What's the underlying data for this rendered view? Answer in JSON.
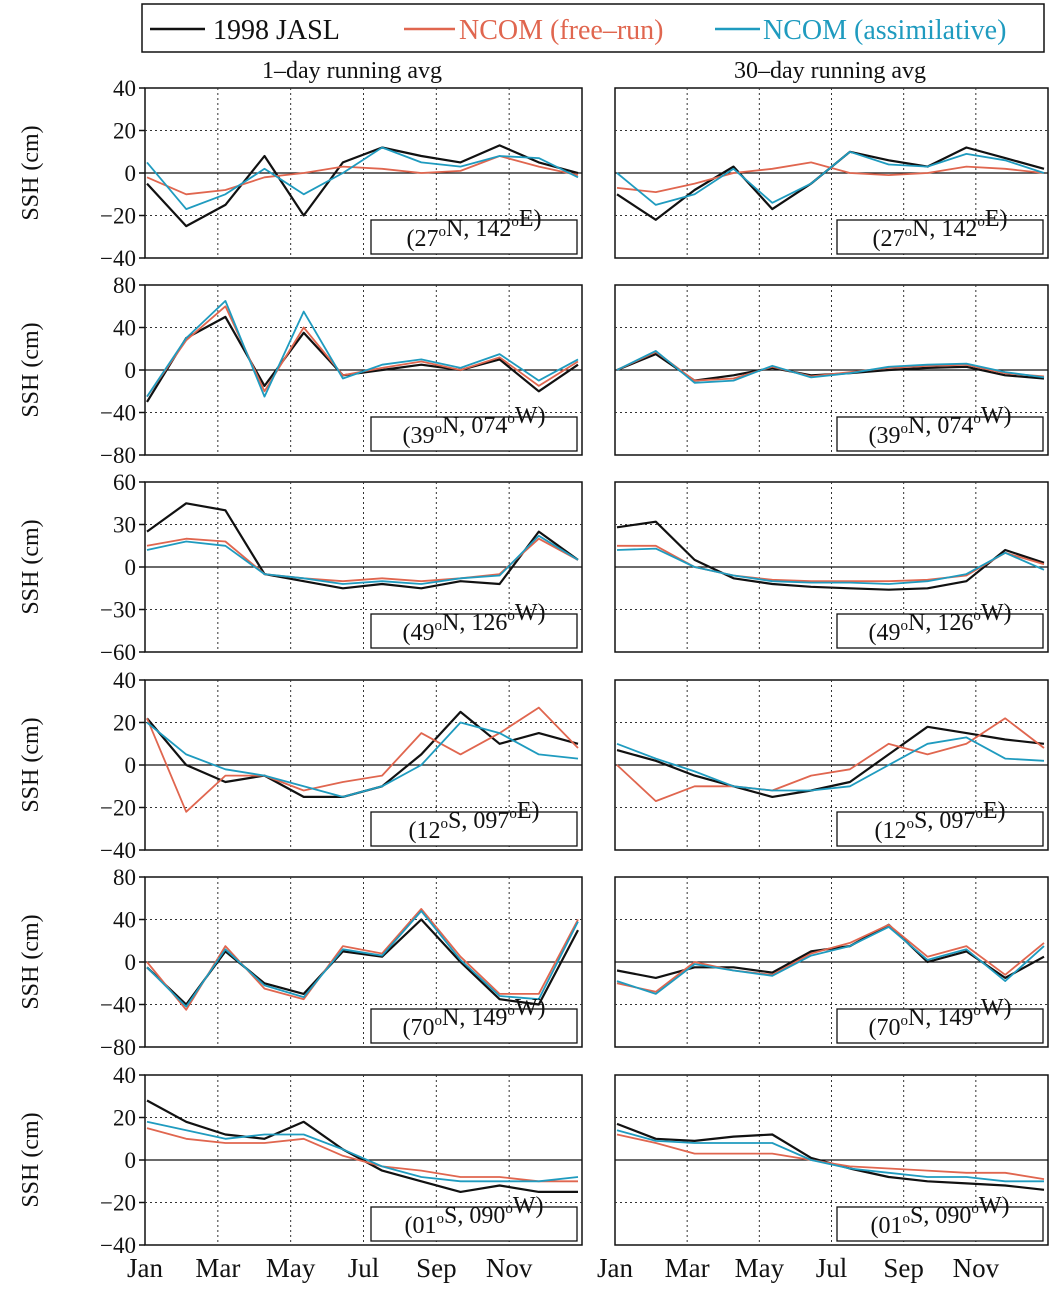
{
  "legend": {
    "entries": [
      {
        "label": "1998 JASL",
        "color": "#111111"
      },
      {
        "label": "NCOM (free–run)",
        "color": "#e0664f"
      },
      {
        "label": "NCOM (assimilative)",
        "color": "#1f9bbf"
      }
    ]
  },
  "column_titles": [
    "1–day running avg",
    "30–day running avg"
  ],
  "x_tick_labels": [
    "Jan",
    "Mar",
    "May",
    "Jul",
    "Sep",
    "Nov"
  ],
  "y_axis_label": "SSH (cm)",
  "chart_data": [
    {
      "type": "line",
      "smoothing": "1-day",
      "location": "(27°N, 142°E)",
      "ylabel": "SSH (cm)",
      "ylim": [
        -40,
        40
      ],
      "yticks": [
        -40,
        -20,
        0,
        20,
        40
      ],
      "xticks": [
        "Jan",
        "Mar",
        "May",
        "Jul",
        "Sep",
        "Nov"
      ],
      "grid": true,
      "x": [
        "Jan",
        "Feb",
        "Mar",
        "Apr",
        "May",
        "Jun",
        "Jul",
        "Aug",
        "Sep",
        "Oct",
        "Nov",
        "Dec"
      ],
      "series": [
        {
          "name": "1998 JASL",
          "values": [
            -5,
            -25,
            -15,
            8,
            -20,
            5,
            12,
            8,
            5,
            13,
            5,
            0
          ]
        },
        {
          "name": "NCOM (free–run)",
          "values": [
            -2,
            -10,
            -8,
            -2,
            0,
            3,
            2,
            0,
            1,
            8,
            3,
            -1
          ]
        },
        {
          "name": "NCOM (assimilative)",
          "values": [
            5,
            -17,
            -10,
            2,
            -10,
            0,
            12,
            5,
            3,
            8,
            7,
            -2
          ]
        }
      ]
    },
    {
      "type": "line",
      "smoothing": "30-day",
      "location": "(27°N, 142°E)",
      "ylabel": "SSH (cm)",
      "ylim": [
        -40,
        40
      ],
      "yticks": [
        -40,
        -20,
        0,
        20,
        40
      ],
      "xticks": [
        "Jan",
        "Mar",
        "May",
        "Jul",
        "Sep",
        "Nov"
      ],
      "grid": true,
      "x": [
        "Jan",
        "Feb",
        "Mar",
        "Apr",
        "May",
        "Jun",
        "Jul",
        "Aug",
        "Sep",
        "Oct",
        "Nov",
        "Dec"
      ],
      "series": [
        {
          "name": "1998 JASL",
          "values": [
            -10,
            -22,
            -8,
            3,
            -17,
            -5,
            10,
            6,
            3,
            12,
            7,
            2
          ]
        },
        {
          "name": "NCOM (free–run)",
          "values": [
            -7,
            -9,
            -5,
            0,
            2,
            5,
            0,
            -1,
            0,
            3,
            2,
            0
          ]
        },
        {
          "name": "NCOM (assimilative)",
          "values": [
            0,
            -15,
            -10,
            2,
            -14,
            -5,
            10,
            4,
            3,
            9,
            6,
            0
          ]
        }
      ]
    },
    {
      "type": "line",
      "smoothing": "1-day",
      "location": "(39°N, 074°W)",
      "ylabel": "SSH (cm)",
      "ylim": [
        -80,
        80
      ],
      "yticks": [
        -80,
        -40,
        0,
        40,
        80
      ],
      "xticks": [
        "Jan",
        "Mar",
        "May",
        "Jul",
        "Sep",
        "Nov"
      ],
      "grid": true,
      "x": [
        "Jan",
        "Feb",
        "Mar",
        "Apr",
        "May",
        "Jun",
        "Jul",
        "Aug",
        "Sep",
        "Oct",
        "Nov",
        "Dec"
      ],
      "series": [
        {
          "name": "1998 JASL",
          "values": [
            -30,
            30,
            50,
            -15,
            35,
            -5,
            0,
            5,
            0,
            10,
            -20,
            5
          ]
        },
        {
          "name": "NCOM (free–run)",
          "values": [
            -25,
            28,
            60,
            -20,
            40,
            -5,
            2,
            8,
            0,
            12,
            -15,
            8
          ]
        },
        {
          "name": "NCOM (assimilative)",
          "values": [
            -25,
            30,
            65,
            -25,
            55,
            -8,
            5,
            10,
            2,
            15,
            -10,
            10
          ]
        }
      ]
    },
    {
      "type": "line",
      "smoothing": "30-day",
      "location": "(39°N, 074°W)",
      "ylabel": "SSH (cm)",
      "ylim": [
        -80,
        80
      ],
      "yticks": [
        -80,
        -40,
        0,
        40,
        80
      ],
      "xticks": [
        "Jan",
        "Mar",
        "May",
        "Jul",
        "Sep",
        "Nov"
      ],
      "grid": true,
      "x": [
        "Jan",
        "Feb",
        "Mar",
        "Apr",
        "May",
        "Jun",
        "Jul",
        "Aug",
        "Sep",
        "Oct",
        "Nov",
        "Dec"
      ],
      "series": [
        {
          "name": "1998 JASL",
          "values": [
            0,
            15,
            -10,
            -5,
            2,
            -5,
            -3,
            0,
            2,
            3,
            -5,
            -8
          ]
        },
        {
          "name": "NCOM (free–run)",
          "values": [
            0,
            17,
            -10,
            -8,
            3,
            -6,
            -2,
            2,
            4,
            5,
            -3,
            -6
          ]
        },
        {
          "name": "NCOM (assimilative)",
          "values": [
            0,
            18,
            -12,
            -10,
            4,
            -7,
            -3,
            3,
            5,
            6,
            -2,
            -7
          ]
        }
      ]
    },
    {
      "type": "line",
      "smoothing": "1-day",
      "location": "(49°N, 126°W)",
      "ylabel": "SSH (cm)",
      "ylim": [
        -60,
        60
      ],
      "yticks": [
        -60,
        -30,
        0,
        30,
        60
      ],
      "xticks": [
        "Jan",
        "Mar",
        "May",
        "Jul",
        "Sep",
        "Nov"
      ],
      "grid": true,
      "x": [
        "Jan",
        "Feb",
        "Mar",
        "Apr",
        "May",
        "Jun",
        "Jul",
        "Aug",
        "Sep",
        "Oct",
        "Nov",
        "Dec"
      ],
      "series": [
        {
          "name": "1998 JASL",
          "values": [
            25,
            45,
            40,
            -5,
            -10,
            -15,
            -12,
            -15,
            -10,
            -12,
            25,
            5
          ]
        },
        {
          "name": "NCOM (free–run)",
          "values": [
            15,
            20,
            18,
            -5,
            -8,
            -10,
            -8,
            -10,
            -8,
            -5,
            20,
            5
          ]
        },
        {
          "name": "NCOM (assimilative)",
          "values": [
            12,
            18,
            15,
            -5,
            -8,
            -12,
            -10,
            -12,
            -8,
            -6,
            22,
            5
          ]
        }
      ]
    },
    {
      "type": "line",
      "smoothing": "30-day",
      "location": "(49°N, 126°W)",
      "ylabel": "SSH (cm)",
      "ylim": [
        -60,
        60
      ],
      "yticks": [
        -60,
        -30,
        0,
        30,
        60
      ],
      "xticks": [
        "Jan",
        "Mar",
        "May",
        "Jul",
        "Sep",
        "Nov"
      ],
      "grid": true,
      "x": [
        "Jan",
        "Feb",
        "Mar",
        "Apr",
        "May",
        "Jun",
        "Jul",
        "Aug",
        "Sep",
        "Oct",
        "Nov",
        "Dec"
      ],
      "series": [
        {
          "name": "1998 JASL",
          "values": [
            28,
            32,
            5,
            -8,
            -12,
            -14,
            -15,
            -16,
            -15,
            -10,
            12,
            3
          ]
        },
        {
          "name": "NCOM (free–run)",
          "values": [
            15,
            15,
            0,
            -6,
            -9,
            -10,
            -10,
            -10,
            -9,
            -6,
            10,
            2
          ]
        },
        {
          "name": "NCOM (assimilative)",
          "values": [
            12,
            13,
            0,
            -6,
            -10,
            -11,
            -11,
            -12,
            -10,
            -5,
            10,
            -2
          ]
        }
      ]
    },
    {
      "type": "line",
      "smoothing": "1-day",
      "location": "(12°S, 097°E)",
      "ylabel": "SSH (cm)",
      "ylim": [
        -40,
        40
      ],
      "yticks": [
        -40,
        -20,
        0,
        20,
        40
      ],
      "xticks": [
        "Jan",
        "Mar",
        "May",
        "Jul",
        "Sep",
        "Nov"
      ],
      "grid": true,
      "x": [
        "Jan",
        "Feb",
        "Mar",
        "Apr",
        "May",
        "Jun",
        "Jul",
        "Aug",
        "Sep",
        "Oct",
        "Nov",
        "Dec"
      ],
      "series": [
        {
          "name": "1998 JASL",
          "values": [
            22,
            0,
            -8,
            -5,
            -15,
            -15,
            -10,
            5,
            25,
            10,
            15,
            10
          ]
        },
        {
          "name": "NCOM (free–run)",
          "values": [
            22,
            -22,
            -5,
            -5,
            -12,
            -8,
            -5,
            15,
            5,
            15,
            27,
            8
          ]
        },
        {
          "name": "NCOM (assimilative)",
          "values": [
            20,
            5,
            -2,
            -5,
            -10,
            -15,
            -10,
            0,
            20,
            15,
            5,
            3
          ]
        }
      ]
    },
    {
      "type": "line",
      "smoothing": "30-day",
      "location": "(12°S, 097°E)",
      "ylabel": "SSH (cm)",
      "ylim": [
        -40,
        40
      ],
      "yticks": [
        -40,
        -20,
        0,
        20,
        40
      ],
      "xticks": [
        "Jan",
        "Mar",
        "May",
        "Jul",
        "Sep",
        "Nov"
      ],
      "grid": true,
      "x": [
        "Jan",
        "Feb",
        "Mar",
        "Apr",
        "May",
        "Jun",
        "Jul",
        "Aug",
        "Sep",
        "Oct",
        "Nov",
        "Dec"
      ],
      "series": [
        {
          "name": "1998 JASL",
          "values": [
            7,
            2,
            -5,
            -10,
            -15,
            -12,
            -8,
            5,
            18,
            15,
            12,
            10
          ]
        },
        {
          "name": "NCOM (free–run)",
          "values": [
            0,
            -17,
            -10,
            -10,
            -12,
            -5,
            -2,
            10,
            5,
            10,
            22,
            8
          ]
        },
        {
          "name": "NCOM (assimilative)",
          "values": [
            10,
            3,
            -3,
            -10,
            -12,
            -12,
            -10,
            0,
            10,
            13,
            3,
            2
          ]
        }
      ]
    },
    {
      "type": "line",
      "smoothing": "1-day",
      "location": "(70°N, 149°W)",
      "ylabel": "SSH (cm)",
      "ylim": [
        -80,
        80
      ],
      "yticks": [
        -80,
        -40,
        0,
        40,
        80
      ],
      "xticks": [
        "Jan",
        "Mar",
        "May",
        "Jul",
        "Sep",
        "Nov"
      ],
      "grid": true,
      "x": [
        "Jan",
        "Feb",
        "Mar",
        "Apr",
        "May",
        "Jun",
        "Jul",
        "Aug",
        "Sep",
        "Oct",
        "Nov",
        "Dec"
      ],
      "series": [
        {
          "name": "1998 JASL",
          "values": [
            -5,
            -40,
            10,
            -20,
            -30,
            10,
            5,
            40,
            0,
            -35,
            -40,
            30
          ]
        },
        {
          "name": "NCOM (free–run)",
          "values": [
            0,
            -45,
            15,
            -25,
            -35,
            15,
            8,
            50,
            5,
            -30,
            -30,
            40
          ]
        },
        {
          "name": "NCOM (assimilative)",
          "values": [
            -5,
            -42,
            12,
            -22,
            -33,
            12,
            6,
            48,
            2,
            -32,
            -35,
            38
          ]
        }
      ]
    },
    {
      "type": "line",
      "smoothing": "30-day",
      "location": "(70°N, 149°W)",
      "ylabel": "SSH (cm)",
      "ylim": [
        -80,
        80
      ],
      "yticks": [
        -80,
        -40,
        0,
        40,
        80
      ],
      "xticks": [
        "Jan",
        "Mar",
        "May",
        "Jul",
        "Sep",
        "Nov"
      ],
      "grid": true,
      "x": [
        "Jan",
        "Feb",
        "Mar",
        "Apr",
        "May",
        "Jun",
        "Jul",
        "Aug",
        "Sep",
        "Oct",
        "Nov",
        "Dec"
      ],
      "series": [
        {
          "name": "1998 JASL",
          "values": [
            -8,
            -15,
            -5,
            -5,
            -10,
            10,
            15,
            35,
            0,
            10,
            -15,
            5
          ]
        },
        {
          "name": "NCOM (free–run)",
          "values": [
            -20,
            -28,
            0,
            -8,
            -12,
            8,
            18,
            35,
            5,
            15,
            -12,
            18
          ]
        },
        {
          "name": "NCOM (assimilative)",
          "values": [
            -18,
            -30,
            -2,
            -8,
            -13,
            6,
            15,
            33,
            2,
            12,
            -18,
            15
          ]
        }
      ]
    },
    {
      "type": "line",
      "smoothing": "1-day",
      "location": "(01°S, 090°W)",
      "ylabel": "SSH (cm)",
      "ylim": [
        -40,
        40
      ],
      "yticks": [
        -40,
        -20,
        0,
        20,
        40
      ],
      "xticks": [
        "Jan",
        "Mar",
        "May",
        "Jul",
        "Sep",
        "Nov"
      ],
      "grid": true,
      "x": [
        "Jan",
        "Feb",
        "Mar",
        "Apr",
        "May",
        "Jun",
        "Jul",
        "Aug",
        "Sep",
        "Oct",
        "Nov",
        "Dec"
      ],
      "series": [
        {
          "name": "1998 JASL",
          "values": [
            28,
            18,
            12,
            10,
            18,
            5,
            -5,
            -10,
            -15,
            -12,
            -15,
            -15
          ]
        },
        {
          "name": "NCOM (free–run)",
          "values": [
            15,
            10,
            8,
            8,
            10,
            2,
            -3,
            -5,
            -8,
            -8,
            -10,
            -10
          ]
        },
        {
          "name": "NCOM (assimilative)",
          "values": [
            18,
            14,
            10,
            12,
            12,
            5,
            -3,
            -8,
            -10,
            -10,
            -10,
            -8
          ]
        }
      ]
    },
    {
      "type": "line",
      "smoothing": "30-day",
      "location": "(01°S, 090°W)",
      "ylabel": "SSH (cm)",
      "ylim": [
        -40,
        40
      ],
      "yticks": [
        -40,
        -20,
        0,
        20,
        40
      ],
      "xticks": [
        "Jan",
        "Mar",
        "May",
        "Jul",
        "Sep",
        "Nov"
      ],
      "grid": true,
      "x": [
        "Jan",
        "Feb",
        "Mar",
        "Apr",
        "May",
        "Jun",
        "Jul",
        "Aug",
        "Sep",
        "Oct",
        "Nov",
        "Dec"
      ],
      "series": [
        {
          "name": "1998 JASL",
          "values": [
            17,
            10,
            9,
            11,
            12,
            1,
            -4,
            -8,
            -10,
            -11,
            -12,
            -14
          ]
        },
        {
          "name": "NCOM (free–run)",
          "values": [
            12,
            8,
            3,
            3,
            3,
            0,
            -3,
            -4,
            -5,
            -6,
            -6,
            -9
          ]
        },
        {
          "name": "NCOM (assimilative)",
          "values": [
            14,
            9,
            8,
            8,
            8,
            0,
            -4,
            -6,
            -8,
            -8,
            -10,
            -10
          ]
        }
      ]
    }
  ]
}
